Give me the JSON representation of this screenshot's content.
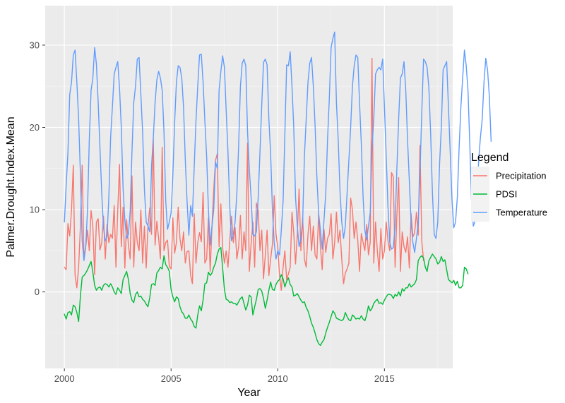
{
  "chart_data": {
    "type": "line",
    "title": "",
    "xlabel": "Year",
    "ylabel": "Palmer.Drought.Index.Mean",
    "xlim": [
      1999.1,
      2018.2
    ],
    "ylim": [
      -9.3,
      34.8
    ],
    "x_ticks": [
      2000,
      2005,
      2010,
      2015
    ],
    "y_ticks": [
      0,
      10,
      20,
      30
    ],
    "x_tick_labels": [
      "2000",
      "2005",
      "2010",
      "2015"
    ],
    "y_tick_labels": [
      "0",
      "10",
      "20",
      "30"
    ],
    "grid": true,
    "legend": {
      "title": "Legend",
      "position": "right"
    },
    "x_start": 2000.0,
    "x_step": 0.0833333,
    "series": [
      {
        "name": "Precipitation",
        "color": "#F8766D",
        "values": [
          3.0,
          2.7,
          8.3,
          6.8,
          10.0,
          15.4,
          2.0,
          0.5,
          3.0,
          8.0,
          15.4,
          4.2,
          5.5,
          7.5,
          5.0,
          9.9,
          8.0,
          2.1,
          8.5,
          8.9,
          5.1,
          6.0,
          9.2,
          4.0,
          8.2,
          6.0,
          7.0,
          6.5,
          10.5,
          3.0,
          9.9,
          15.5,
          5.5,
          10.3,
          2.9,
          8.8,
          5.7,
          4.0,
          14.1,
          3.0,
          8.5,
          6.0,
          5.0,
          10.0,
          3.5,
          8.0,
          2.9,
          8.0,
          10.2,
          7.0,
          18.6,
          5.7,
          8.6,
          6.5,
          4.0,
          17.6,
          5.0,
          6.0,
          6.3,
          3.1,
          2.8,
          9.0,
          4.7,
          6.0,
          10.3,
          6.5,
          5.0,
          7.3,
          3.5,
          4.9,
          5.0,
          2.0,
          1.0,
          9.5,
          3.5,
          6.0,
          7.2,
          6.1,
          12.1,
          3.5,
          4.0,
          9.0,
          2.5,
          8.0,
          12.5,
          16.0,
          16.8,
          5.5,
          10.7,
          5.4,
          3.5,
          5.0,
          3.0,
          6.2,
          9.2,
          6.0,
          7.8,
          4.0,
          5.5,
          9.3,
          4.0,
          7.3,
          5.0,
          18.1,
          2.5,
          5.8,
          8.5,
          3.0,
          10.8,
          9.9,
          5.0,
          7.5,
          1.6,
          4.5,
          7.5,
          2.0,
          4.0,
          5.8,
          11.7,
          7.0,
          5.5,
          2.0,
          0.2,
          3.0,
          5.0,
          1.5,
          2.2,
          3.0,
          9.7,
          7.1,
          3.4,
          7.0,
          12.5,
          5.0,
          9.0,
          4.0,
          3.0,
          7.0,
          9.2,
          5.0,
          8.0,
          4.5,
          4.0,
          9.6,
          5.5,
          2.7,
          7.6,
          4.8,
          6.5,
          7.0,
          9.5,
          4.0,
          6.0,
          9.7,
          6.0,
          7.5,
          4.0,
          1.0,
          2.3,
          2.8,
          3.5,
          11.4,
          10.0,
          6.5,
          8.5,
          6.3,
          2.5,
          7.1,
          6.0,
          5.0,
          8.2,
          4.5,
          6.0,
          28.4,
          3.5,
          8.5,
          5.0,
          2.5,
          7.7,
          4.0,
          5.0,
          8.5,
          6.2,
          5.0,
          14.5,
          14.0,
          3.0,
          9.2,
          13.9,
          2.5,
          7.3,
          5.5,
          4.8,
          6.7,
          2.9,
          9.5,
          6.7,
          7.2,
          9.7,
          6.9,
          17.8,
          6.2,
          3.8
        ]
      },
      {
        "name": "PDSI",
        "color": "#00BA38",
        "values": [
          -2.7,
          -3.3,
          -2.5,
          -2.4,
          -2.8,
          -1.6,
          -1.8,
          -2.5,
          -3.6,
          -0.5,
          1.8,
          2.0,
          2.3,
          2.7,
          3.2,
          3.7,
          2.4,
          0.8,
          0.2,
          0.5,
          0.6,
          0.2,
          0.8,
          1.0,
          0.9,
          0.6,
          1.0,
          0.6,
          0.0,
          -0.3,
          0.5,
          0.2,
          -0.2,
          1.5,
          2.0,
          2.5,
          1.5,
          -0.2,
          -1.0,
          -1.3,
          -0.3,
          0.0,
          -0.6,
          -0.5,
          -0.9,
          -1.1,
          -1.5,
          -1.8,
          -0.7,
          0.9,
          1.0,
          0.8,
          2.3,
          2.6,
          3.0,
          2.8,
          4.4,
          3.3,
          3.0,
          2.5,
          0.3,
          -0.6,
          -1.2,
          -0.6,
          -0.8,
          -1.8,
          -2.4,
          -2.7,
          -3.2,
          -3.2,
          -2.8,
          -3.3,
          -3.6,
          -4.2,
          -4.4,
          -2.8,
          -1.7,
          -2.3,
          -1.0,
          1.0,
          1.1,
          2.4,
          2.0,
          2.3,
          3.0,
          3.5,
          4.6,
          5.2,
          5.4,
          2.9,
          0.3,
          -0.9,
          -1.0,
          -1.3,
          -1.2,
          -1.4,
          -1.4,
          -1.6,
          -1.2,
          -0.8,
          -0.6,
          -1.4,
          -2.2,
          -1.6,
          -0.4,
          -0.6,
          -2.8,
          -1.8,
          -0.9,
          0.3,
          0.4,
          0.1,
          -0.8,
          -2.0,
          -1.0,
          0.2,
          1.2,
          0.3,
          0.2,
          0.9,
          1.3,
          1.5,
          2.1,
          1.6,
          0.6,
          1.3,
          1.7,
          0.9,
          0.6,
          -0.5,
          -0.4,
          -0.2,
          -0.6,
          -1.0,
          -1.3,
          -1.2,
          -1.9,
          -2.3,
          -3.0,
          -3.8,
          -4.3,
          -5.0,
          -5.8,
          -6.3,
          -6.5,
          -6.1,
          -5.8,
          -5.0,
          -4.3,
          -3.7,
          -3.0,
          -2.3,
          -2.6,
          -3.2,
          -3.3,
          -3.4,
          -3.5,
          -3.3,
          -2.5,
          -3.0,
          -3.4,
          -3.5,
          -2.8,
          -3.0,
          -3.3,
          -3.2,
          -3.3,
          -2.9,
          -3.3,
          -3.5,
          -2.8,
          -1.7,
          -2.3,
          -2.0,
          -1.4,
          -1.1,
          -0.9,
          -1.4,
          -1.3,
          -1.5,
          -1.0,
          -0.6,
          -0.3,
          -0.3,
          -0.4,
          -0.8,
          -0.3,
          -0.5,
          0.0,
          -0.5,
          0.4,
          0.1,
          0.5,
          0.5,
          1.0,
          0.6,
          0.8,
          1.0,
          1.5,
          3.8,
          4.2,
          4.4,
          4.1,
          3.0,
          2.5,
          3.8,
          4.2,
          4.6,
          4.3,
          4.0,
          3.4,
          3.6,
          4.3,
          3.7,
          3.9,
          2.7,
          1.5,
          1.3,
          1.1,
          1.4,
          0.8,
          1.3,
          0.5,
          0.5,
          0.8,
          3.0,
          2.8,
          2.2
        ]
      },
      {
        "name": "Temperature",
        "color": "#619CFF",
        "values": [
          8.5,
          13.0,
          17.0,
          24.0,
          25.5,
          28.8,
          29.4,
          25.5,
          21.0,
          14.3,
          6.2,
          3.8,
          5.5,
          10.0,
          18.5,
          24.5,
          26.0,
          29.7,
          27.7,
          23.0,
          17.5,
          12.0,
          7.8,
          6.2,
          6.8,
          11.5,
          18.8,
          22.5,
          26.5,
          27.3,
          28.0,
          24.8,
          20.0,
          12.6,
          8.8,
          6.5,
          7.0,
          9.8,
          17.0,
          23.0,
          25.0,
          28.3,
          28.5,
          24.0,
          19.4,
          12.5,
          8.5,
          8.0,
          7.3,
          15.3,
          18.7,
          23.0,
          25.8,
          26.8,
          26.0,
          24.5,
          19.5,
          11.0,
          7.6,
          8.5,
          9.6,
          14.2,
          20.6,
          25.5,
          27.5,
          27.3,
          26.0,
          22.5,
          16.0,
          11.0,
          6.9,
          10.5,
          9.2,
          15.1,
          20.8,
          25.0,
          28.8,
          28.9,
          25.5,
          20.8,
          16.5,
          10.0,
          5.7,
          8.0,
          10.0,
          15.8,
          15.0,
          24.5,
          26.8,
          28.7,
          27.3,
          22.0,
          17.0,
          10.5,
          6.2,
          7.0,
          8.5,
          12.0,
          17.8,
          25.0,
          27.8,
          28.3,
          27.5,
          19.5,
          15.0,
          11.5,
          7.0,
          6.8,
          7.3,
          11.5,
          17.0,
          22.8,
          27.9,
          28.3,
          27.6,
          21.0,
          16.8,
          10.0,
          6.0,
          4.0,
          5.0,
          4.5,
          7.5,
          11.0,
          19.2,
          27.6,
          27.5,
          29.2,
          25.0,
          20.0,
          11.5,
          8.0,
          5.5,
          6.5,
          8.5,
          16.5,
          21.0,
          25.5,
          27.8,
          28.5,
          25.0,
          20.2,
          14.0,
          9.5,
          7.5,
          5.2,
          8.7,
          12.0,
          18.5,
          23.5,
          29.7,
          30.8,
          31.6,
          23.0,
          18.5,
          12.3,
          8.5,
          6.5,
          8.0,
          12.0,
          16.0,
          20.0,
          25.0,
          27.5,
          28.8,
          28.5,
          23.0,
          18.0,
          11.5,
          7.5,
          6.3,
          8.0,
          9.6,
          17.5,
          21.0,
          26.5,
          27.0,
          27.3,
          27.0,
          28.3,
          22.5,
          16.5,
          10.3,
          6.0,
          5.2,
          5.4,
          8.0,
          15.0,
          21.0,
          26.0,
          26.5,
          28.0,
          24.5,
          18.5,
          13.5,
          8.5,
          6.0,
          4.8,
          6.5,
          8.3,
          14.5,
          21.8,
          28.3,
          28.0,
          27.3,
          24.8,
          19.2,
          12.0,
          7.0,
          6.5,
          8.5,
          15.5,
          20.0,
          27.0,
          27.5,
          28.0,
          22.5,
          17.0,
          11.2,
          7.8,
          8.5,
          11.5,
          17.5,
          22.5,
          26.0,
          29.4,
          27.5,
          24.5,
          18.0,
          11.0,
          8.0,
          8.6,
          11.0,
          16.0,
          18.8,
          21.0,
          25.5,
          28.4,
          27.0,
          23.8,
          18.3
        ]
      }
    ]
  }
}
